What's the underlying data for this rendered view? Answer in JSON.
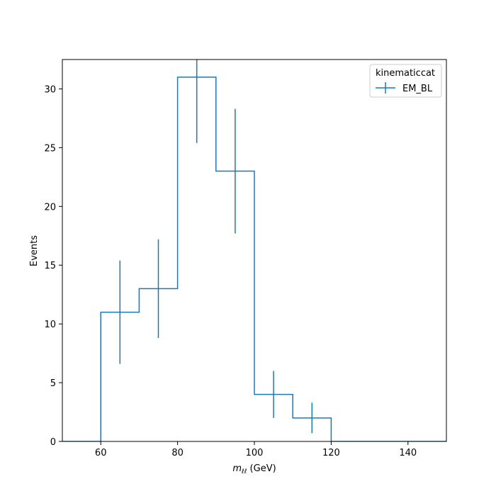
{
  "chart_data": {
    "type": "histogram",
    "xlabel_main": "m",
    "xlabel_sub": "ℓℓ",
    "xlabel_unit": " (GeV)",
    "ylabel": "Events",
    "xlim": [
      50,
      150
    ],
    "ylim": [
      0,
      32.5
    ],
    "xticks": [
      60,
      80,
      100,
      120,
      140
    ],
    "yticks": [
      0,
      5,
      10,
      15,
      20,
      25,
      30
    ],
    "bin_edges": [
      50,
      60,
      70,
      80,
      90,
      100,
      110,
      120,
      130,
      140,
      150
    ],
    "series": [
      {
        "name": "EM_BL",
        "color": "#1f77b4",
        "values": [
          0,
          11,
          13,
          31,
          23,
          4,
          2,
          0,
          0,
          0
        ],
        "errors": [
          0,
          4.4,
          4.2,
          5.6,
          5.3,
          2.0,
          1.3,
          0,
          0,
          0
        ]
      }
    ],
    "legend": {
      "title": "kinematiccat",
      "placement": "top-right"
    }
  }
}
